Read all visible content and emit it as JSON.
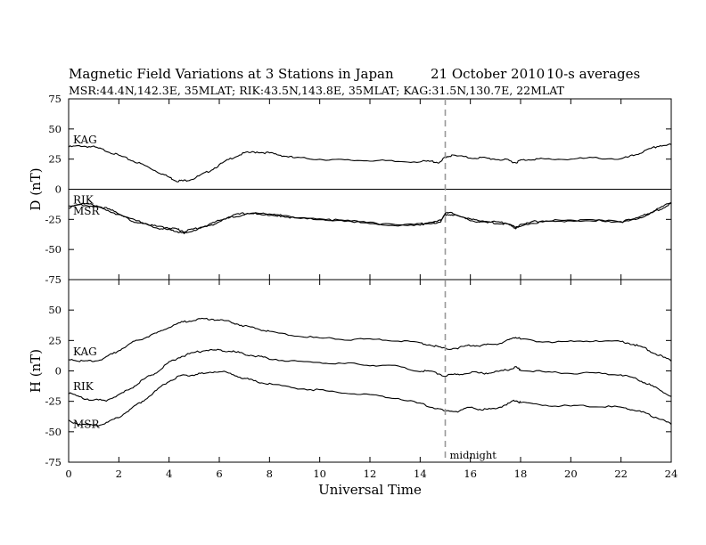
{
  "header": {
    "title": "Magnetic Field Variations at 3 Stations in Japan",
    "date": "21  October 2010",
    "averaging": "10-s averages",
    "stations": "MSR:44.4N,142.3E, 35MLAT;  RIK:43.5N,143.8E, 35MLAT;  KAG:31.5N,130.7E, 22MLAT"
  },
  "chart_data": {
    "type": "line",
    "title": "Magnetic Field Variations at 3 Stations in Japan",
    "xlabel": "Universal Time",
    "xlim": [
      0,
      24
    ],
    "x_ticks": [
      "0",
      "2",
      "4",
      "6",
      "8",
      "10",
      "12",
      "14",
      "16",
      "18",
      "20",
      "22",
      "24"
    ],
    "marker": {
      "x": 15,
      "label": "midnight",
      "style": "dashed",
      "color": "#999999"
    },
    "panels": [
      {
        "id": "D",
        "ylabel": "D (nT)",
        "ylim": [
          -75,
          75
        ],
        "y_ticks": [
          "-75",
          "-50",
          "-25",
          "0",
          "25",
          "50",
          "75"
        ],
        "zero_line": true,
        "series": [
          {
            "name": "KAG",
            "x": [
              0,
              0.5,
              1,
              1.5,
              2,
              2.5,
              3,
              3.5,
              4,
              4.3,
              4.6,
              5,
              5.5,
              6,
              6.5,
              7,
              7.5,
              8,
              8.5,
              9,
              10,
              11,
              12,
              13,
              14,
              14.5,
              14.8,
              15,
              15.3,
              16,
              16.5,
              17,
              17.5,
              17.8,
              18,
              18.5,
              19,
              20,
              21,
              22,
              22.5,
              23,
              23.5,
              24
            ],
            "values": [
              35,
              36,
              35,
              32,
              28,
              24,
              20,
              15,
              10,
              7,
              7,
              9,
              14,
              20,
              26,
              30,
              31,
              30,
              28,
              26,
              25,
              24,
              24,
              23,
              23,
              23,
              22,
              27,
              28,
              26,
              26,
              25,
              24,
              22,
              24,
              25,
              25,
              25,
              26,
              25,
              28,
              32,
              36,
              37
            ]
          },
          {
            "name": "RIK",
            "x": [
              0,
              0.5,
              1,
              1.5,
              2,
              2.5,
              3,
              3.5,
              4,
              4.3,
              4.6,
              5,
              5.5,
              6,
              6.5,
              7,
              7.5,
              8,
              8.5,
              9,
              10,
              11,
              12,
              13,
              14,
              14.5,
              14.8,
              15,
              15.3,
              16,
              16.5,
              17,
              17.5,
              17.8,
              18,
              18.5,
              19,
              20,
              21,
              22,
              22.5,
              23,
              23.5,
              24
            ],
            "values": [
              -14,
              -12,
              -13,
              -16,
              -20,
              -25,
              -28,
              -31,
              -32,
              -33,
              -35,
              -33,
              -30,
              -26,
              -22,
              -20,
              -20,
              -21,
              -22,
              -23,
              -25,
              -26,
              -28,
              -30,
              -29,
              -28,
              -26,
              -20,
              -20,
              -25,
              -27,
              -27,
              -28,
              -32,
              -30,
              -27,
              -26,
              -26,
              -26,
              -27,
              -25,
              -21,
              -16,
              -11
            ]
          },
          {
            "name": "MSR",
            "x": [
              0,
              0.5,
              1,
              1.5,
              2,
              2.5,
              3,
              3.5,
              4,
              4.3,
              4.6,
              5,
              5.5,
              6,
              6.5,
              7,
              7.5,
              8,
              8.5,
              9,
              10,
              11,
              12,
              13,
              14,
              14.5,
              14.8,
              15,
              15.3,
              16,
              16.5,
              17,
              17.5,
              17.8,
              18,
              18.5,
              19,
              20,
              21,
              22,
              22.5,
              23,
              23.5,
              24
            ],
            "values": [
              -15,
              -13,
              -14,
              -17,
              -21,
              -26,
              -29,
              -32,
              -34,
              -35,
              -37,
              -34,
              -31,
              -27,
              -23,
              -21,
              -20,
              -21,
              -22,
              -24,
              -25,
              -26,
              -28,
              -30,
              -29,
              -28,
              -27,
              -21,
              -21,
              -26,
              -27,
              -28,
              -29,
              -32,
              -30,
              -28,
              -27,
              -26,
              -26,
              -27,
              -25,
              -22,
              -17,
              -12
            ]
          }
        ],
        "series_labels": [
          "KAG",
          "RIK",
          "MSR"
        ]
      },
      {
        "id": "H",
        "ylabel": "H (nT)",
        "ylim": [
          -75,
          75
        ],
        "y_ticks": [
          "-75",
          "-50",
          "-25",
          "0",
          "25",
          "50",
          "75"
        ],
        "zero_line": false,
        "series": [
          {
            "name": "KAG",
            "x": [
              0,
              0.5,
              1,
              1.5,
              2,
              2.5,
              3,
              3.5,
              4,
              4.5,
              5,
              5.5,
              6,
              6.5,
              7,
              7.5,
              8,
              9,
              10,
              11,
              12,
              13,
              14,
              14.5,
              15,
              15.5,
              16,
              16.5,
              17,
              17.5,
              17.8,
              18,
              19,
              20,
              21,
              22,
              22.5,
              23,
              23.5,
              24
            ],
            "values": [
              10,
              8,
              8,
              11,
              17,
              23,
              27,
              31,
              36,
              40,
              42,
              43,
              42,
              40,
              37,
              35,
              32,
              29,
              27,
              26,
              26,
              25,
              23,
              21,
              18,
              19,
              21,
              21,
              22,
              25,
              28,
              26,
              24,
              24,
              25,
              24,
              22,
              18,
              13,
              8
            ]
          },
          {
            "name": "RIK",
            "x": [
              0,
              0.5,
              1,
              1.5,
              2,
              2.5,
              3,
              3.5,
              4,
              4.5,
              5,
              5.5,
              6,
              6.5,
              7,
              7.5,
              8,
              9,
              10,
              11,
              12,
              13,
              14,
              14.5,
              15,
              15.5,
              16,
              16.5,
              17,
              17.5,
              17.8,
              18,
              19,
              20,
              21,
              22,
              22.5,
              23,
              23.5,
              24
            ],
            "values": [
              -18,
              -22,
              -24,
              -24,
              -20,
              -14,
              -7,
              -1,
              7,
              12,
              15,
              17,
              17,
              16,
              14,
              12,
              10,
              8,
              7,
              6,
              5,
              4,
              0,
              -1,
              -4,
              -3,
              -1,
              -2,
              -1,
              1,
              3,
              1,
              -1,
              -2,
              -2,
              -3,
              -6,
              -10,
              -15,
              -21
            ]
          },
          {
            "name": "MSR",
            "x": [
              0,
              0.5,
              1,
              1.5,
              2,
              2.5,
              3,
              3.5,
              4,
              4.5,
              5,
              5.5,
              6,
              6.5,
              7,
              7.5,
              8,
              9,
              10,
              11,
              12,
              13,
              14,
              14.5,
              15,
              15.5,
              16,
              16.5,
              17,
              17.5,
              17.8,
              18,
              19,
              20,
              21,
              22,
              22.5,
              23,
              23.5,
              24
            ],
            "values": [
              -41,
              -44,
              -45,
              -43,
              -38,
              -31,
              -24,
              -16,
              -8,
              -4,
              -3,
              -2,
              0,
              -3,
              -6,
              -9,
              -11,
              -14,
              -16,
              -18,
              -20,
              -22,
              -27,
              -30,
              -33,
              -33,
              -30,
              -32,
              -31,
              -27,
              -24,
              -26,
              -28,
              -29,
              -29,
              -30,
              -32,
              -35,
              -39,
              -44
            ]
          }
        ],
        "series_labels": [
          "KAG",
          "RIK",
          "MSR"
        ]
      }
    ]
  }
}
